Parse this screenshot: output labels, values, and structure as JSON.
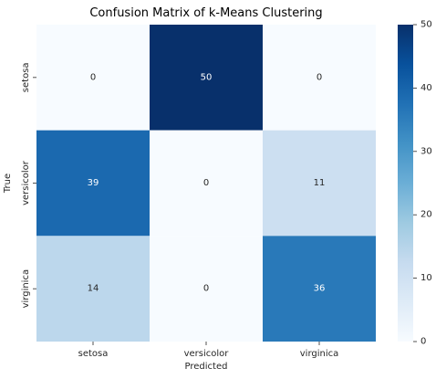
{
  "chart_data": {
    "type": "heatmap",
    "title": "Confusion Matrix of k-Means Clustering",
    "xlabel": "Predicted",
    "ylabel": "True",
    "x_categories": [
      "setosa",
      "versicolor",
      "virginica"
    ],
    "y_categories": [
      "setosa",
      "versicolor",
      "virginica"
    ],
    "values": [
      [
        0,
        50,
        0
      ],
      [
        39,
        0,
        11
      ],
      [
        14,
        0,
        36
      ]
    ],
    "colormap": "Blues",
    "color_range": [
      0,
      50
    ],
    "colorbar_ticks": [
      "0",
      "10",
      "20",
      "30",
      "40",
      "50"
    ]
  }
}
